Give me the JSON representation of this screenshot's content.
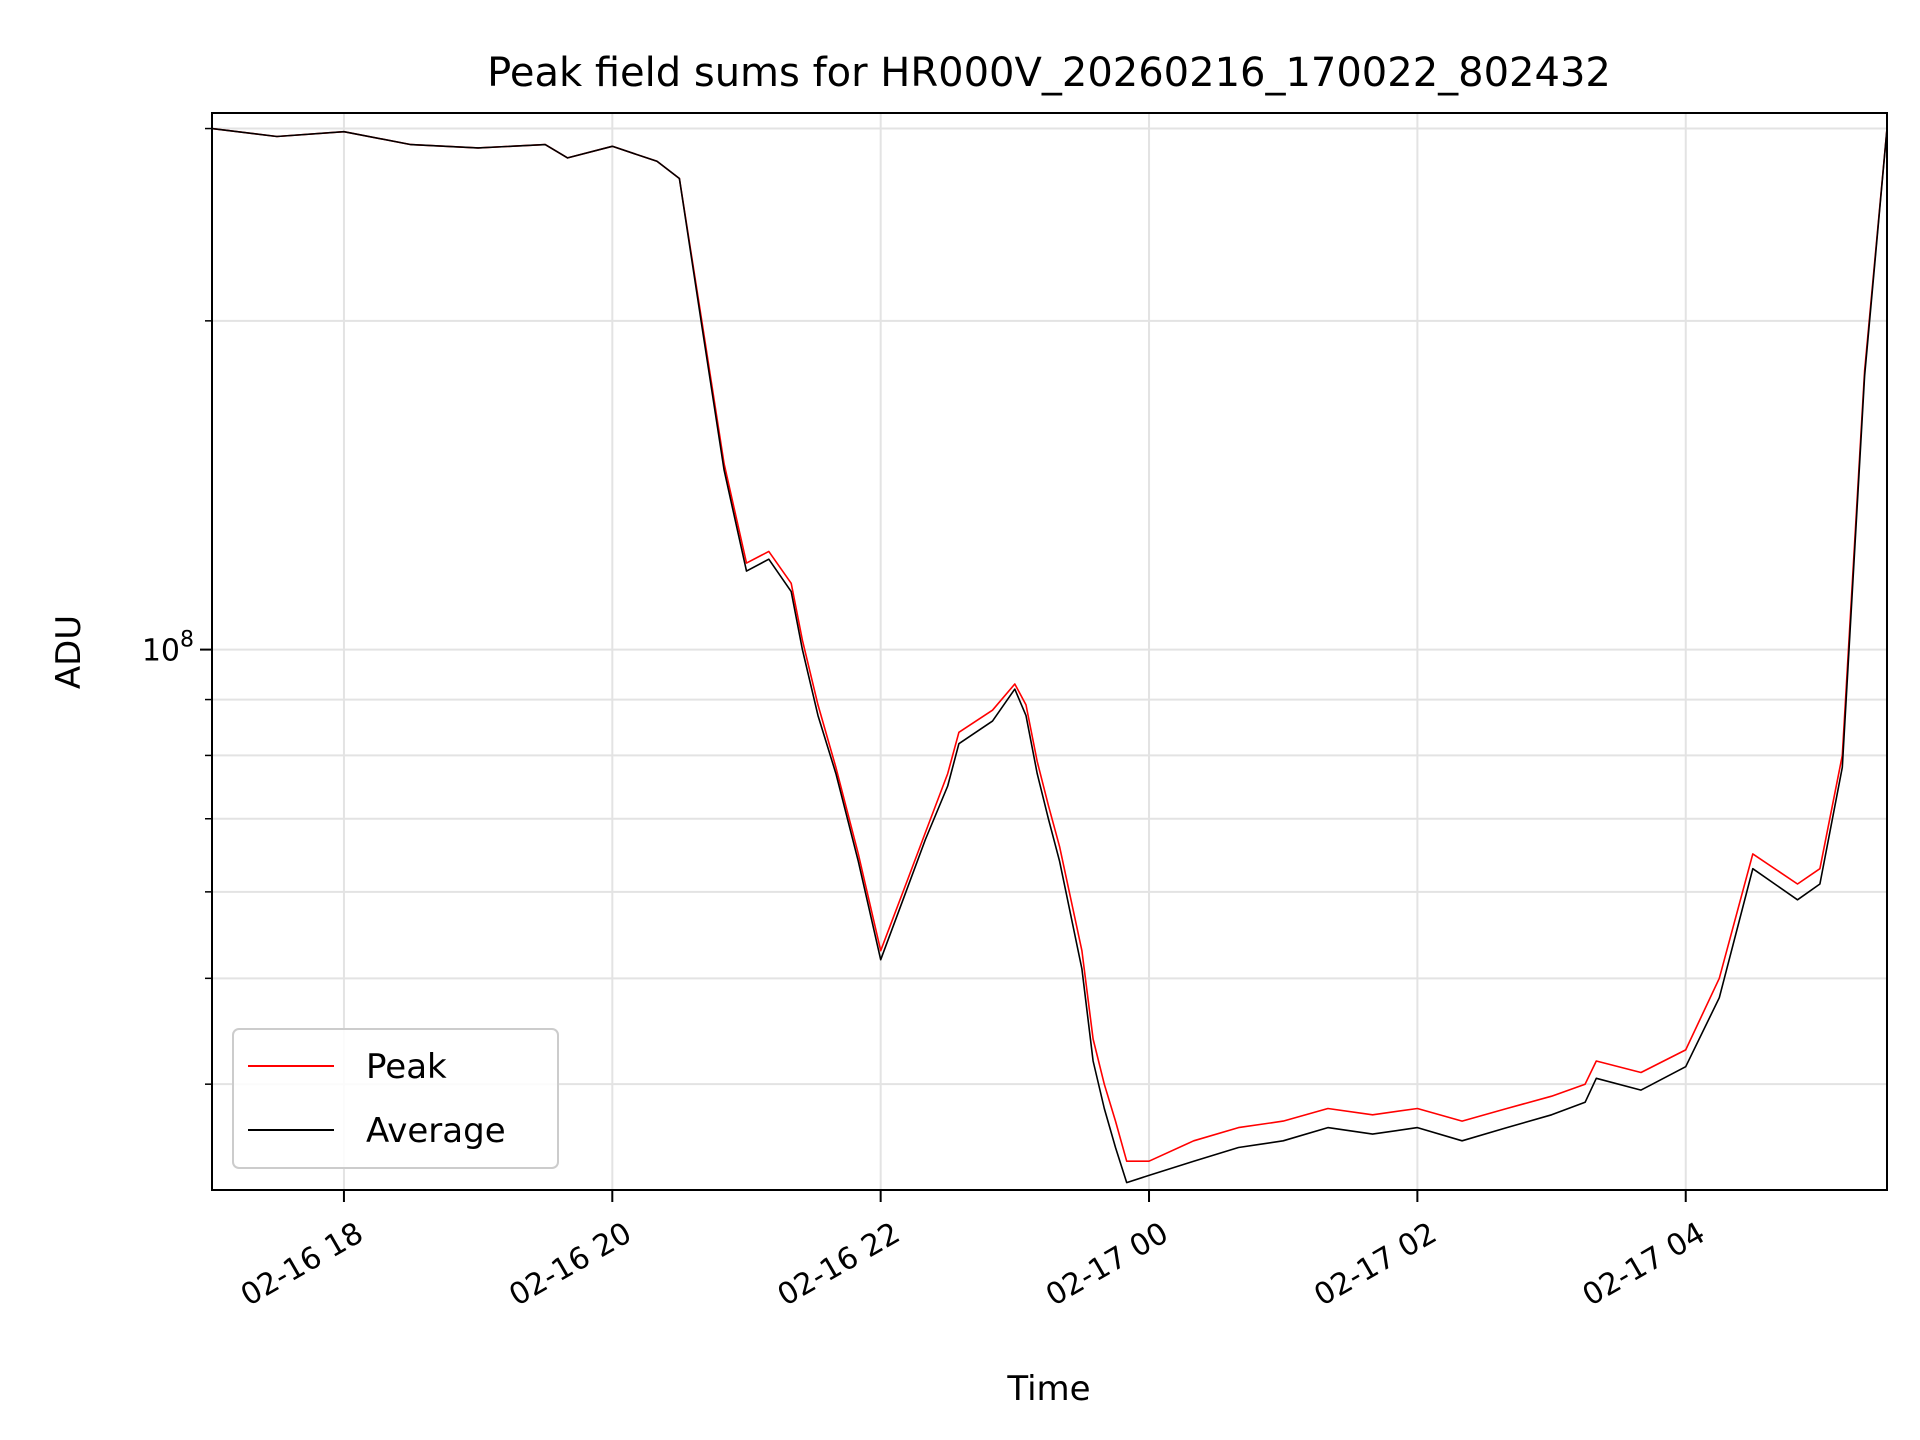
{
  "chart_data": {
    "type": "line",
    "title": "Peak field sums for HR000V_20260216_170022_802432",
    "xlabel": "Time",
    "ylabel": "ADU",
    "y_scale": "log",
    "xlim": [
      "2026-02-16 17:01",
      "2026-02-17 05:30"
    ],
    "ylim": [
      32000000,
      310000000
    ],
    "grid": true,
    "legend_position": "lower-left",
    "x_ticks": [
      {
        "time": "2026-02-16 18:00",
        "label": "02-16 18"
      },
      {
        "time": "2026-02-16 20:00",
        "label": "02-16 20"
      },
      {
        "time": "2026-02-16 22:00",
        "label": "02-16 22"
      },
      {
        "time": "2026-02-17 00:00",
        "label": "02-17 00"
      },
      {
        "time": "2026-02-17 02:00",
        "label": "02-17 02"
      },
      {
        "time": "2026-02-17 04:00",
        "label": "02-17 04"
      }
    ],
    "y_major_tick": {
      "value": 100000000,
      "label_base": "10",
      "label_exp": "8"
    },
    "y_minor_ticks": [
      40000000,
      50000000,
      60000000,
      70000000,
      80000000,
      90000000,
      200000000,
      300000000
    ],
    "series": [
      {
        "name": "Peak",
        "color": "#ff0000",
        "x": [
          "2026-02-16 17:01",
          "2026-02-16 17:30",
          "2026-02-16 18:00",
          "2026-02-16 18:30",
          "2026-02-16 19:00",
          "2026-02-16 19:30",
          "2026-02-16 19:40",
          "2026-02-16 20:00",
          "2026-02-16 20:20",
          "2026-02-16 20:30",
          "2026-02-16 20:40",
          "2026-02-16 20:50",
          "2026-02-16 21:00",
          "2026-02-16 21:10",
          "2026-02-16 21:20",
          "2026-02-16 21:25",
          "2026-02-16 21:32",
          "2026-02-16 21:40",
          "2026-02-16 21:50",
          "2026-02-16 22:00",
          "2026-02-16 22:10",
          "2026-02-16 22:20",
          "2026-02-16 22:30",
          "2026-02-16 22:35",
          "2026-02-16 22:50",
          "2026-02-16 23:00",
          "2026-02-16 23:05",
          "2026-02-16 23:10",
          "2026-02-16 23:15",
          "2026-02-16 23:20",
          "2026-02-16 23:30",
          "2026-02-16 23:35",
          "2026-02-16 23:40",
          "2026-02-16 23:45",
          "2026-02-16 23:50",
          "2026-02-17 00:00",
          "2026-02-17 00:20",
          "2026-02-17 00:40",
          "2026-02-17 01:00",
          "2026-02-17 01:20",
          "2026-02-17 01:40",
          "2026-02-17 02:00",
          "2026-02-17 02:20",
          "2026-02-17 02:40",
          "2026-02-17 03:00",
          "2026-02-17 03:15",
          "2026-02-17 03:20",
          "2026-02-17 03:40",
          "2026-02-17 04:00",
          "2026-02-17 04:15",
          "2026-02-17 04:30",
          "2026-02-17 04:50",
          "2026-02-17 05:00",
          "2026-02-17 05:10",
          "2026-02-17 05:20",
          "2026-02-17 05:30"
        ],
        "y": [
          300000000,
          295000000,
          298000000,
          290000000,
          288000000,
          290000000,
          282000000,
          289000000,
          280000000,
          270000000,
          200000000,
          148000000,
          120000000,
          123000000,
          115000000,
          102000000,
          89000000,
          78000000,
          65000000,
          53000000,
          60000000,
          68000000,
          77000000,
          84000000,
          88000000,
          93000000,
          89000000,
          79000000,
          72000000,
          66000000,
          53000000,
          44000000,
          40000000,
          37000000,
          34000000,
          34000000,
          35500000,
          36500000,
          37000000,
          38000000,
          37500000,
          38000000,
          37000000,
          38000000,
          39000000,
          40000000,
          42000000,
          41000000,
          43000000,
          50000000,
          65000000,
          61000000,
          63000000,
          80000000,
          180000000,
          300000000
        ]
      },
      {
        "name": "Average",
        "color": "#000000",
        "x": [
          "2026-02-16 17:01",
          "2026-02-16 17:30",
          "2026-02-16 18:00",
          "2026-02-16 18:30",
          "2026-02-16 19:00",
          "2026-02-16 19:30",
          "2026-02-16 19:40",
          "2026-02-16 20:00",
          "2026-02-16 20:20",
          "2026-02-16 20:30",
          "2026-02-16 20:40",
          "2026-02-16 20:50",
          "2026-02-16 21:00",
          "2026-02-16 21:10",
          "2026-02-16 21:20",
          "2026-02-16 21:25",
          "2026-02-16 21:32",
          "2026-02-16 21:40",
          "2026-02-16 21:50",
          "2026-02-16 22:00",
          "2026-02-16 22:10",
          "2026-02-16 22:20",
          "2026-02-16 22:30",
          "2026-02-16 22:35",
          "2026-02-16 22:50",
          "2026-02-16 23:00",
          "2026-02-16 23:05",
          "2026-02-16 23:10",
          "2026-02-16 23:15",
          "2026-02-16 23:20",
          "2026-02-16 23:30",
          "2026-02-16 23:35",
          "2026-02-16 23:40",
          "2026-02-16 23:45",
          "2026-02-16 23:50",
          "2026-02-17 00:00",
          "2026-02-17 00:20",
          "2026-02-17 00:40",
          "2026-02-17 01:00",
          "2026-02-17 01:20",
          "2026-02-17 01:40",
          "2026-02-17 02:00",
          "2026-02-17 02:20",
          "2026-02-17 02:40",
          "2026-02-17 03:00",
          "2026-02-17 03:15",
          "2026-02-17 03:20",
          "2026-02-17 03:40",
          "2026-02-17 04:00",
          "2026-02-17 04:15",
          "2026-02-17 04:30",
          "2026-02-17 04:50",
          "2026-02-17 05:00",
          "2026-02-17 05:10",
          "2026-02-17 05:20",
          "2026-02-17 05:30"
        ],
        "y": [
          300000000,
          295000000,
          298000000,
          290000000,
          288000000,
          290000000,
          282000000,
          289000000,
          280000000,
          270000000,
          198000000,
          146000000,
          118000000,
          121000000,
          113000000,
          100000000,
          87000000,
          77000000,
          64000000,
          52000000,
          59000000,
          67000000,
          75000000,
          82000000,
          86000000,
          92000000,
          87000000,
          77000000,
          70000000,
          64000000,
          51000000,
          42000000,
          38000000,
          35000000,
          32500000,
          33000000,
          34000000,
          35000000,
          35500000,
          36500000,
          36000000,
          36500000,
          35500000,
          36500000,
          37500000,
          38500000,
          40500000,
          39500000,
          41500000,
          48000000,
          63000000,
          59000000,
          61000000,
          78000000,
          178000000,
          300000000
        ]
      }
    ]
  }
}
